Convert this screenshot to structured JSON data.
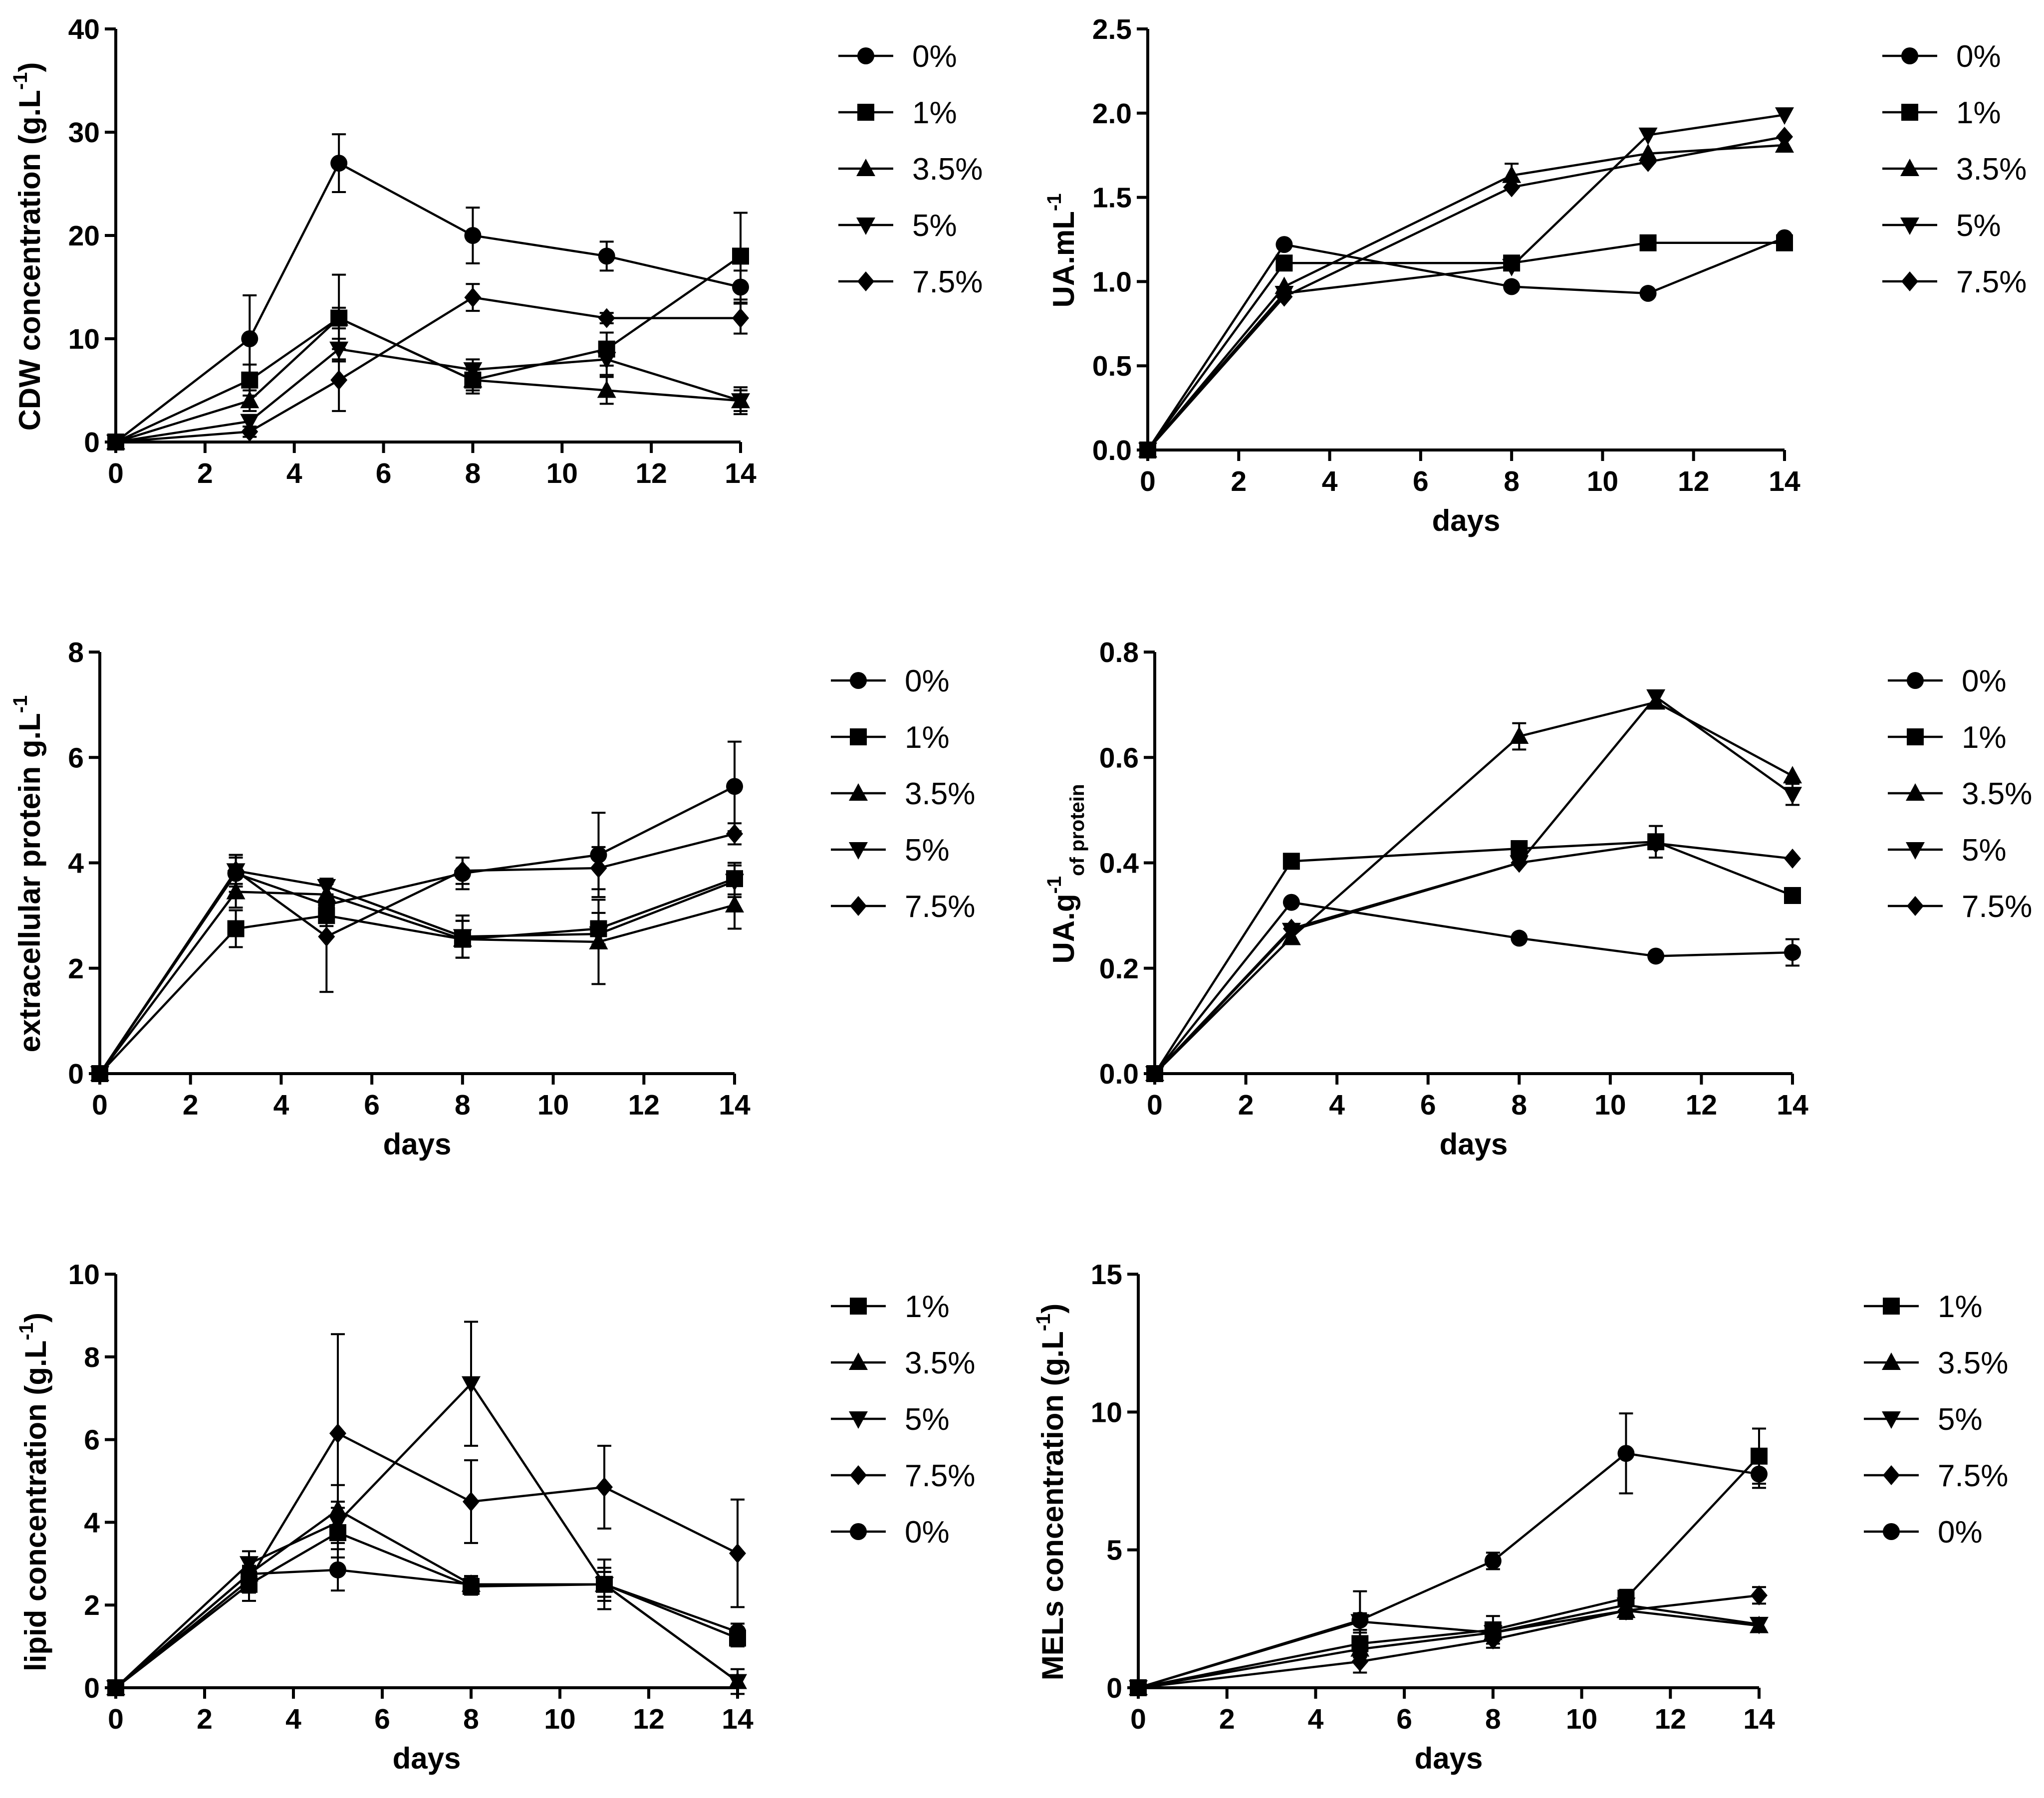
{
  "chart_data": [
    {
      "type": "line",
      "x": [
        0,
        3,
        5,
        8,
        11,
        14
      ],
      "xlim": [
        0,
        14
      ],
      "xticks": [
        0,
        2,
        4,
        6,
        8,
        10,
        12,
        14
      ],
      "xlabel": "",
      "ylabel": "CDW concentration (g.L",
      "ylabel_sup": "-1",
      "ylabel_tail": ")",
      "ylim": [
        0,
        40
      ],
      "yticks": [
        0,
        10,
        20,
        30,
        40
      ],
      "ytick_labels": [
        "0",
        "10",
        "20",
        "30",
        "40"
      ],
      "legend_position": "right",
      "series": [
        {
          "name": "0%",
          "marker": "circle",
          "values": [
            0,
            10,
            27,
            20,
            18,
            15
          ],
          "errors": [
            0,
            4.2,
            2.8,
            2.7,
            1.4,
            1.6
          ]
        },
        {
          "name": "1%",
          "marker": "square",
          "values": [
            0,
            6,
            12,
            6,
            9,
            18
          ],
          "errors": [
            0,
            1.5,
            4.2,
            1.3,
            1.6,
            4.2
          ]
        },
        {
          "name": "3.5%",
          "marker": "triangle-up",
          "values": [
            0,
            4,
            12,
            6,
            5,
            4
          ],
          "errors": [
            0,
            1,
            1,
            1,
            1.3,
            1.3
          ]
        },
        {
          "name": "5%",
          "marker": "triangle-down",
          "values": [
            0,
            2,
            9,
            7,
            8,
            4
          ],
          "errors": [
            0,
            0.5,
            1,
            1,
            1.5,
            1
          ]
        },
        {
          "name": "7.5%",
          "marker": "diamond",
          "values": [
            0,
            1,
            6,
            14,
            12,
            12
          ],
          "errors": [
            0,
            0.5,
            3,
            1.3,
            0.5,
            1.5
          ]
        }
      ]
    },
    {
      "type": "line",
      "x": [
        0,
        3,
        8,
        11,
        14
      ],
      "xlim": [
        0,
        14
      ],
      "xticks": [
        0,
        2,
        4,
        6,
        8,
        10,
        12,
        14
      ],
      "xlabel": "days",
      "ylabel": "UA.mL",
      "ylabel_sup": "-1",
      "ylabel_tail": "",
      "ylim": [
        0,
        2.5
      ],
      "yticks": [
        0,
        0.5,
        1,
        1.5,
        2,
        2.5
      ],
      "ytick_labels": [
        "0.0",
        "0.5",
        "1.0",
        "1.5",
        "2.0",
        "2.5"
      ],
      "legend_position": "right",
      "series": [
        {
          "name": "0%",
          "marker": "circle",
          "values": [
            0,
            1.22,
            0.97,
            0.93,
            1.26
          ],
          "errors": [
            0,
            0,
            0,
            0,
            0
          ]
        },
        {
          "name": "1%",
          "marker": "square",
          "values": [
            0,
            1.11,
            1.11,
            1.23,
            1.23
          ],
          "errors": [
            0,
            0,
            0,
            0,
            0
          ]
        },
        {
          "name": "3.5%",
          "marker": "triangle-up",
          "values": [
            0,
            0.97,
            1.63,
            1.76,
            1.81
          ],
          "errors": [
            0,
            0,
            0.07,
            0,
            0
          ]
        },
        {
          "name": "5%",
          "marker": "triangle-down",
          "values": [
            0,
            0.93,
            1.09,
            1.87,
            1.99
          ],
          "errors": [
            0,
            0,
            0,
            0,
            0
          ]
        },
        {
          "name": "7.5%",
          "marker": "diamond",
          "values": [
            0,
            0.91,
            1.56,
            1.71,
            1.86
          ],
          "errors": [
            0,
            0,
            0,
            0,
            0
          ]
        }
      ]
    },
    {
      "type": "line",
      "x": [
        0,
        3,
        5,
        8,
        11,
        14
      ],
      "xlim": [
        0,
        14
      ],
      "xticks": [
        0,
        2,
        4,
        6,
        8,
        10,
        12,
        14
      ],
      "xlabel": "days",
      "ylabel": "extracellular protein g.L",
      "ylabel_sup": "-1",
      "ylabel_tail": "",
      "ylim": [
        0,
        8
      ],
      "yticks": [
        0,
        2,
        4,
        6,
        8
      ],
      "ytick_labels": [
        "0",
        "2",
        "4",
        "6",
        "8"
      ],
      "legend_position": "right",
      "series": [
        {
          "name": "0%",
          "marker": "circle",
          "values": [
            0,
            3.8,
            3.2,
            3.8,
            4.15,
            5.45
          ],
          "errors": [
            0,
            0.35,
            0.2,
            0.3,
            0.8,
            0.85
          ]
        },
        {
          "name": "1%",
          "marker": "square",
          "values": [
            0,
            2.75,
            3.0,
            2.55,
            2.75,
            3.7
          ],
          "errors": [
            0,
            0.35,
            0.2,
            0.35,
            0.3,
            0.3
          ]
        },
        {
          "name": "3.5%",
          "marker": "triangle-up",
          "values": [
            0,
            3.45,
            3.4,
            2.55,
            2.5,
            3.2
          ],
          "errors": [
            0,
            0.3,
            0.2,
            0.35,
            0.8,
            0.45
          ]
        },
        {
          "name": "5%",
          "marker": "triangle-down",
          "values": [
            0,
            3.85,
            3.55,
            2.6,
            2.65,
            3.65
          ],
          "errors": [
            0,
            0.25,
            0.15,
            0.4,
            0.2,
            0.3
          ]
        },
        {
          "name": "7.5%",
          "marker": "diamond",
          "values": [
            0,
            3.85,
            2.6,
            3.85,
            3.9,
            4.55
          ],
          "errors": [
            0,
            0.3,
            1.05,
            0.25,
            0.4,
            0.2
          ]
        }
      ]
    },
    {
      "type": "line",
      "x": [
        0,
        3,
        8,
        11,
        14
      ],
      "xlim": [
        0,
        14
      ],
      "xticks": [
        0,
        2,
        4,
        6,
        8,
        10,
        12,
        14
      ],
      "xlabel": "days",
      "ylabel": "UA.g",
      "ylabel_sup": "-1",
      "ylabel_sub": "of protein",
      "ylabel_tail": "",
      "ylim": [
        0,
        0.8
      ],
      "yticks": [
        0,
        0.2,
        0.4,
        0.6,
        0.8
      ],
      "ytick_labels": [
        "0.0",
        "0.2",
        "0.4",
        "0.6",
        "0.8"
      ],
      "legend_position": "right",
      "series": [
        {
          "name": "0%",
          "marker": "circle",
          "values": [
            0,
            0.325,
            0.257,
            0.223,
            0.23
          ],
          "errors": [
            0,
            0,
            0,
            0,
            0.025
          ]
        },
        {
          "name": "1%",
          "marker": "square",
          "values": [
            0,
            0.403,
            0.427,
            0.44,
            0.338
          ],
          "errors": [
            0,
            0,
            0,
            0.03,
            0
          ]
        },
        {
          "name": "3.5%",
          "marker": "triangle-up",
          "values": [
            0,
            0.258,
            0.64,
            0.705,
            0.565
          ],
          "errors": [
            0,
            0,
            0.025,
            0,
            0
          ]
        },
        {
          "name": "5%",
          "marker": "triangle-down",
          "values": [
            0,
            0.272,
            0.4,
            0.715,
            0.53
          ],
          "errors": [
            0,
            0,
            0,
            0,
            0.02
          ]
        },
        {
          "name": "7.5%",
          "marker": "diamond",
          "values": [
            0,
            0.275,
            0.4,
            0.437,
            0.408
          ],
          "errors": [
            0,
            0,
            0,
            0,
            0
          ]
        }
      ]
    },
    {
      "type": "line",
      "x": [
        0,
        3,
        5,
        8,
        11,
        14
      ],
      "xlim": [
        0,
        14
      ],
      "xticks": [
        0,
        2,
        4,
        6,
        8,
        10,
        12,
        14
      ],
      "xlabel": "days",
      "ylabel": "lipid concentration (g.L",
      "ylabel_sup": "-1",
      "ylabel_tail": ")",
      "ylim": [
        0,
        10
      ],
      "yticks": [
        0,
        2,
        4,
        6,
        8,
        10
      ],
      "ytick_labels": [
        "0",
        "2",
        "4",
        "6",
        "8",
        "10"
      ],
      "legend_position": "right",
      "series": [
        {
          "name": "1%",
          "marker": "square",
          "values": [
            0,
            2.5,
            3.75,
            2.45,
            2.5,
            1.2
          ],
          "errors": [
            0,
            0.4,
            0.6,
            0.2,
            0.3,
            0.2
          ]
        },
        {
          "name": "3.5%",
          "marker": "triangle-up",
          "values": [
            0,
            2.75,
            4.3,
            2.5,
            2.5,
            0.15
          ],
          "errors": [
            0,
            0.2,
            0.6,
            0.2,
            0.3,
            0.1
          ]
        },
        {
          "name": "5%",
          "marker": "triangle-down",
          "values": [
            0,
            3.0,
            4.0,
            7.35,
            2.5,
            0.15
          ],
          "errors": [
            0,
            0.3,
            0.5,
            1.5,
            0.4,
            0.3
          ]
        },
        {
          "name": "7.5%",
          "marker": "diamond",
          "values": [
            0,
            2.6,
            6.15,
            4.5,
            4.85,
            3.25
          ],
          "errors": [
            0,
            0.3,
            2.4,
            1.0,
            1.0,
            1.3
          ]
        },
        {
          "name": "0%",
          "marker": "circle",
          "values": [
            0,
            2.75,
            2.85,
            2.5,
            2.5,
            1.35
          ],
          "errors": [
            0,
            0.2,
            0.5,
            0.2,
            0.6,
            0.2
          ]
        }
      ]
    },
    {
      "type": "line",
      "x": [
        0,
        5,
        8,
        11,
        14
      ],
      "xlim": [
        0,
        14
      ],
      "xticks": [
        0,
        2,
        4,
        6,
        8,
        10,
        12,
        14
      ],
      "xlabel": "days",
      "ylabel": "MELs concentration (g.L",
      "ylabel_sup": "-1",
      "ylabel_tail": ")",
      "ylim": [
        0,
        15
      ],
      "yticks": [
        0,
        5,
        10,
        15
      ],
      "ytick_labels": [
        "0",
        "5",
        "10",
        "15"
      ],
      "legend_position": "right",
      "series": [
        {
          "name": "1%",
          "marker": "square",
          "values": [
            0,
            1.6,
            2.1,
            3.25,
            8.4
          ],
          "errors": [
            0,
            0.4,
            0.5,
            0.3,
            1.0
          ]
        },
        {
          "name": "3.5%",
          "marker": "triangle-up",
          "values": [
            0,
            1.4,
            2.0,
            2.8,
            2.25
          ],
          "errors": [
            0,
            0.3,
            0.3,
            0.3,
            0.2
          ]
        },
        {
          "name": "5%",
          "marker": "triangle-down",
          "values": [
            0,
            2.4,
            2.0,
            3.0,
            2.3
          ],
          "errors": [
            0,
            0.3,
            0.3,
            0.3,
            0.2
          ]
        },
        {
          "name": "7.5%",
          "marker": "diamond",
          "values": [
            0,
            0.95,
            1.75,
            2.8,
            3.35
          ],
          "errors": [
            0,
            0.4,
            0.3,
            0.3,
            0.3
          ]
        },
        {
          "name": "0%",
          "marker": "circle",
          "values": [
            0,
            2.45,
            4.6,
            8.5,
            7.75
          ],
          "errors": [
            0,
            1.05,
            0.3,
            1.45,
            0.5
          ]
        }
      ]
    }
  ]
}
